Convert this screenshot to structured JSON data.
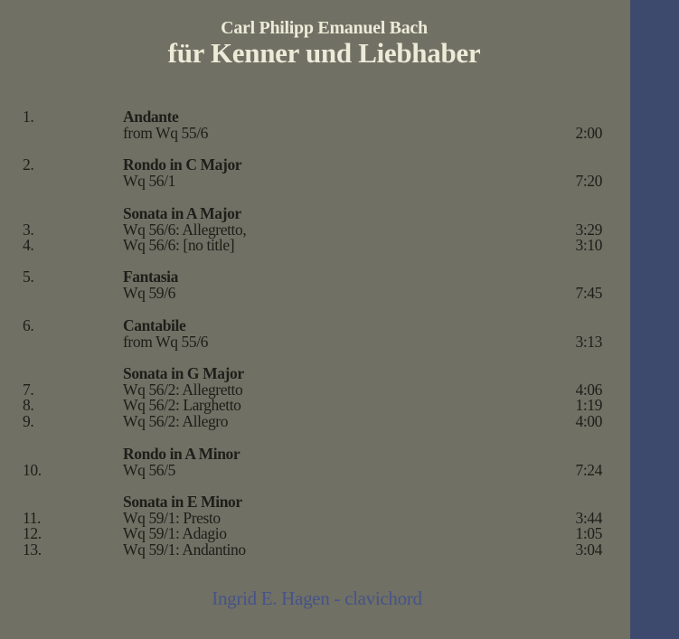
{
  "header": {
    "composer": "Carl Philipp Emanuel Bach",
    "title": "für Kenner und Liebhaber"
  },
  "groups": [
    {
      "title": "Andante",
      "num": "1.",
      "tracks": [
        {
          "num": "",
          "sub": "from Wq 55/6",
          "time": "2:00"
        }
      ]
    },
    {
      "title": "Rondo in C Major",
      "num": "2.",
      "tracks": [
        {
          "num": "",
          "sub": "Wq 56/1",
          "time": "7:20"
        }
      ]
    },
    {
      "title": "Sonata in A Major",
      "num": "",
      "tracks": [
        {
          "num": "3.",
          "sub": "Wq 56/6: Allegretto,",
          "time": "3:29"
        },
        {
          "num": "4.",
          "sub": "Wq 56/6: [no title]",
          "time": "3:10"
        }
      ]
    },
    {
      "title": "Fantasia",
      "num": "5.",
      "tracks": [
        {
          "num": "",
          "sub": "Wq 59/6",
          "time": "7:45"
        }
      ]
    },
    {
      "title": "Cantabile",
      "num": "6.",
      "tracks": [
        {
          "num": "",
          "sub": "from Wq 55/6",
          "time": "3:13"
        }
      ]
    },
    {
      "title": "Sonata in G Major",
      "num": "",
      "tracks": [
        {
          "num": "7.",
          "sub": "Wq 56/2: Allegretto",
          "time": "4:06"
        },
        {
          "num": "8.",
          "sub": "Wq 56/2: Larghetto",
          "time": "1:19"
        },
        {
          "num": "9.",
          "sub": "Wq 56/2: Allegro",
          "time": "4:00"
        }
      ]
    },
    {
      "title": "Rondo in A Minor",
      "num": "",
      "tracks": [
        {
          "num": "10.",
          "sub": "Wq 56/5",
          "time": "7:24"
        }
      ]
    },
    {
      "title": "Sonata in E Minor",
      "num": "",
      "tracks": [
        {
          "num": "11.",
          "sub": "Wq 59/1: Presto",
          "time": "3:44"
        },
        {
          "num": "12.",
          "sub": "Wq 59/1: Adagio",
          "time": "1:05"
        },
        {
          "num": "13.",
          "sub": "Wq 59/1: Andantino",
          "time": "3:04"
        }
      ]
    }
  ],
  "performer": "Ingrid E. Hagen - clavichord",
  "colors": {
    "background": "#707064",
    "strip": "#3d4a6e",
    "title": "#ecebd8",
    "performer": "#45538a"
  }
}
